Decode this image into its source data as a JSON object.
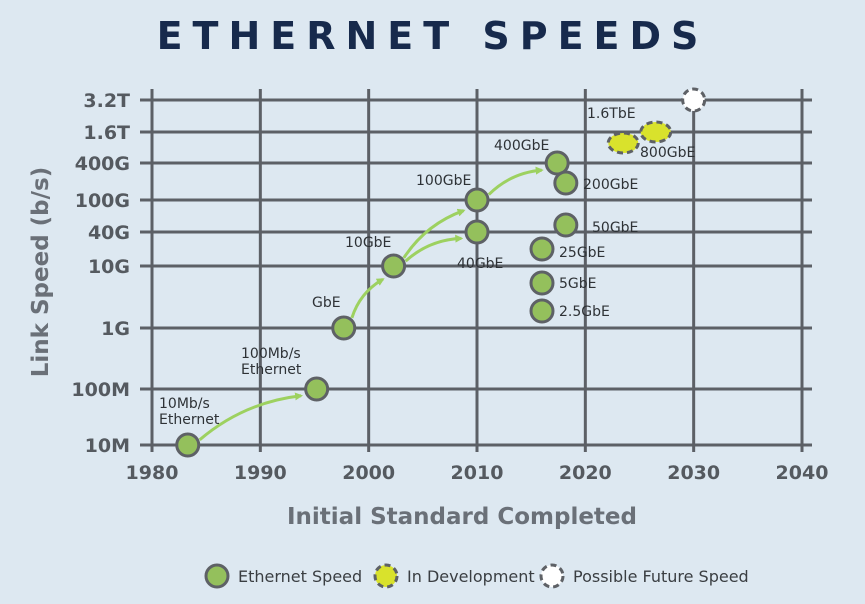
{
  "chart_data": {
    "type": "scatter",
    "title": "ETHERNET SPEEDS",
    "xlabel": "Initial Standard Completed",
    "ylabel": "Link Speed (b/s)",
    "xlim": [
      1980,
      2040
    ],
    "x_ticks": [
      "1980",
      "1990",
      "2000",
      "2010",
      "2020",
      "2030",
      "2040"
    ],
    "y_ticks": [
      "10M",
      "100M",
      "1G",
      "10G",
      "40G",
      "100G",
      "400G",
      "1.6T",
      "3.2T"
    ],
    "y_tick_values_bps": [
      10000000,
      100000000,
      1000000000,
      10000000000,
      40000000000,
      100000000000,
      400000000000,
      1600000000000,
      3200000000000
    ],
    "colors": {
      "ethernet": "#94c05c",
      "development": "#d9e22c",
      "future": "#ffffff",
      "outline": "#5e6166",
      "arrow": "#9dd160",
      "grid": "#5c6066"
    },
    "points": [
      {
        "label": "10Mb/s Ethernet",
        "year": 1983.3,
        "speed": "10M",
        "status": "ethernet"
      },
      {
        "label": "100Mb/s Ethernet",
        "year": 1995.2,
        "speed": "100M",
        "status": "ethernet"
      },
      {
        "label": "GbE",
        "year": 1997.7,
        "speed": "1G",
        "status": "ethernet"
      },
      {
        "label": "10GbE",
        "year": 2002.3,
        "speed": "10G",
        "status": "ethernet"
      },
      {
        "label": "40GbE",
        "year": 2010,
        "speed": "40G",
        "status": "ethernet"
      },
      {
        "label": "100GbE",
        "year": 2010,
        "speed": "100G",
        "status": "ethernet"
      },
      {
        "label": "400GbE",
        "year": 2017.4,
        "speed": "400G",
        "status": "ethernet"
      },
      {
        "label": "200GbE",
        "year": 2018.2,
        "speed": "200G",
        "status": "ethernet"
      },
      {
        "label": "50GbE",
        "year": 2018.2,
        "speed": "50G",
        "status": "ethernet"
      },
      {
        "label": "25GbE",
        "year": 2016,
        "speed": "25G",
        "status": "ethernet"
      },
      {
        "label": "5GbE",
        "year": 2016,
        "speed": "5G",
        "status": "ethernet"
      },
      {
        "label": "2.5GbE",
        "year": 2016,
        "speed": "2.5G",
        "status": "ethernet"
      },
      {
        "label": "800GbE",
        "year": 2023.5,
        "speed": "800G",
        "status": "development"
      },
      {
        "label": "1.6TbE",
        "year": 2026.5,
        "speed": "1.6T",
        "status": "development"
      },
      {
        "label": "",
        "year": 2030,
        "speed": "3.2T",
        "status": "future"
      }
    ],
    "arrows": [
      {
        "from": "10Mb/s Ethernet",
        "to": "100Mb/s Ethernet"
      },
      {
        "from": "GbE",
        "to": "10GbE"
      },
      {
        "from": "10GbE",
        "to": "40GbE"
      },
      {
        "from": "10GbE",
        "to": "100GbE"
      },
      {
        "from": "100GbE",
        "to": "400GbE"
      }
    ],
    "legend": [
      {
        "label": "Ethernet Speed",
        "status": "ethernet"
      },
      {
        "label": "In Development",
        "status": "development"
      },
      {
        "label": "Possible Future Speed",
        "status": "future"
      }
    ],
    "legend_position": "bottom-center",
    "grid": true
  }
}
